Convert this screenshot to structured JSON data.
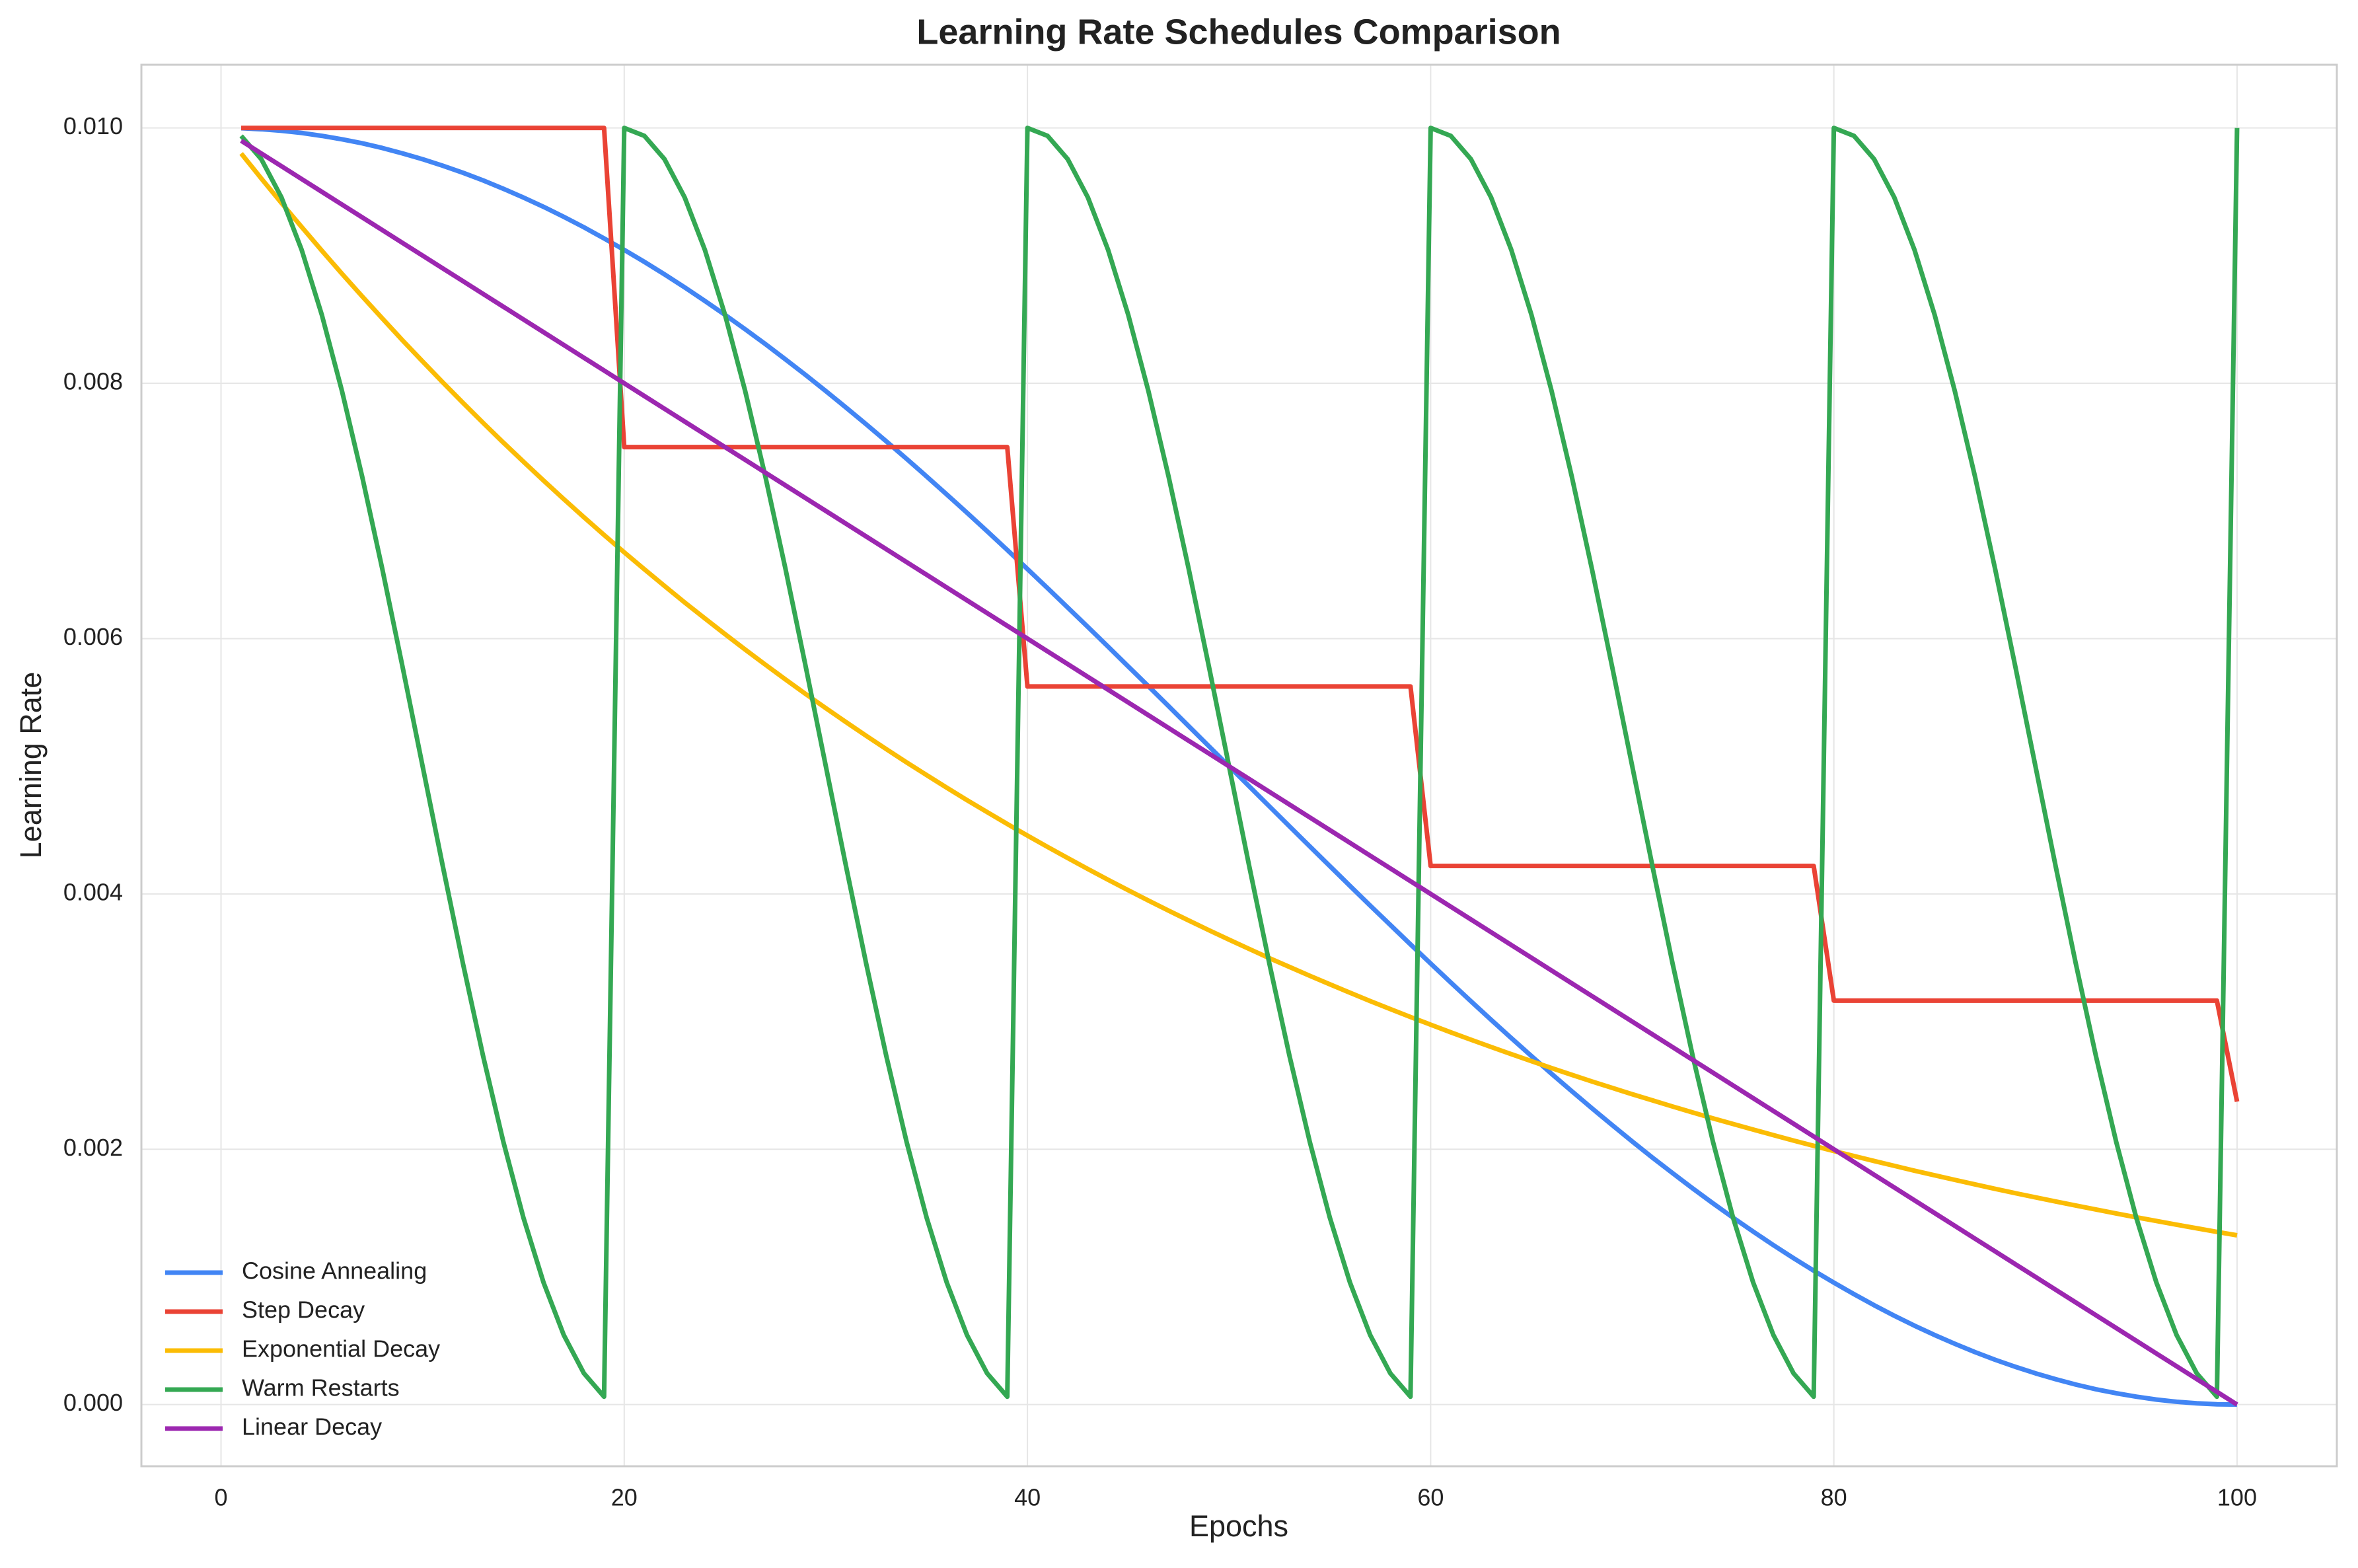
{
  "chart_data": {
    "type": "line",
    "title": "Learning Rate Schedules Comparison",
    "x_label": "Epochs",
    "y_label": "Learning Rate",
    "x": [
      1,
      2,
      3,
      4,
      5,
      6,
      7,
      8,
      9,
      10,
      11,
      12,
      13,
      14,
      15,
      16,
      17,
      18,
      19,
      20,
      21,
      22,
      23,
      24,
      25,
      26,
      27,
      28,
      29,
      30,
      31,
      32,
      33,
      34,
      35,
      36,
      37,
      38,
      39,
      40,
      41,
      42,
      43,
      44,
      45,
      46,
      47,
      48,
      49,
      50,
      51,
      52,
      53,
      54,
      55,
      56,
      57,
      58,
      59,
      60,
      61,
      62,
      63,
      64,
      65,
      66,
      67,
      68,
      69,
      70,
      71,
      72,
      73,
      74,
      75,
      76,
      77,
      78,
      79,
      80,
      81,
      82,
      83,
      84,
      85,
      86,
      87,
      88,
      89,
      90,
      91,
      92,
      93,
      94,
      95,
      96,
      97,
      98,
      99,
      100
    ],
    "series": [
      {
        "name": "Cosine Annealing",
        "color": "#4285F4",
        "values": [
          0.009998,
          0.00999,
          0.009978,
          0.009961,
          0.009938,
          0.009911,
          0.00988,
          0.009843,
          0.009801,
          0.009755,
          0.009704,
          0.009649,
          0.009589,
          0.009524,
          0.009455,
          0.009382,
          0.009304,
          0.009222,
          0.009135,
          0.009045,
          0.008951,
          0.008853,
          0.008751,
          0.008645,
          0.008536,
          0.008423,
          0.008307,
          0.008187,
          0.008065,
          0.007939,
          0.00781,
          0.007679,
          0.007545,
          0.007409,
          0.00727,
          0.007129,
          0.006986,
          0.006841,
          0.006694,
          0.006545,
          0.006395,
          0.006243,
          0.006091,
          0.005937,
          0.005782,
          0.005627,
          0.005471,
          0.005314,
          0.005157,
          0.005,
          0.004843,
          0.004686,
          0.004529,
          0.004373,
          0.004218,
          0.004063,
          0.003909,
          0.003757,
          0.003605,
          0.003455,
          0.003306,
          0.003159,
          0.003014,
          0.002871,
          0.00273,
          0.002591,
          0.002455,
          0.002321,
          0.00219,
          0.002061,
          0.001935,
          0.001813,
          0.001693,
          0.001577,
          0.001464,
          0.001355,
          0.001249,
          0.001147,
          0.001049,
          0.000955,
          0.000865,
          0.000778,
          0.000696,
          0.000618,
          0.000545,
          0.000476,
          0.000411,
          0.000351,
          0.000296,
          0.000245,
          0.000199,
          0.000157,
          0.00012,
          8.9e-05,
          6.2e-05,
          3.9e-05,
          2.2e-05,
          1e-05,
          2e-06,
          0
        ]
      },
      {
        "name": "Step Decay",
        "color": "#EA4335",
        "values": [
          0.01,
          0.01,
          0.01,
          0.01,
          0.01,
          0.01,
          0.01,
          0.01,
          0.01,
          0.01,
          0.01,
          0.01,
          0.01,
          0.01,
          0.01,
          0.01,
          0.01,
          0.01,
          0.01,
          0.0075,
          0.0075,
          0.0075,
          0.0075,
          0.0075,
          0.0075,
          0.0075,
          0.0075,
          0.0075,
          0.0075,
          0.0075,
          0.0075,
          0.0075,
          0.0075,
          0.0075,
          0.0075,
          0.0075,
          0.0075,
          0.0075,
          0.0075,
          0.005625,
          0.005625,
          0.005625,
          0.005625,
          0.005625,
          0.005625,
          0.005625,
          0.005625,
          0.005625,
          0.005625,
          0.005625,
          0.005625,
          0.005625,
          0.005625,
          0.005625,
          0.005625,
          0.005625,
          0.005625,
          0.005625,
          0.005625,
          0.004219,
          0.004219,
          0.004219,
          0.004219,
          0.004219,
          0.004219,
          0.004219,
          0.004219,
          0.004219,
          0.004219,
          0.004219,
          0.004219,
          0.004219,
          0.004219,
          0.004219,
          0.004219,
          0.004219,
          0.004219,
          0.004219,
          0.004219,
          0.003164,
          0.003164,
          0.003164,
          0.003164,
          0.003164,
          0.003164,
          0.003164,
          0.003164,
          0.003164,
          0.003164,
          0.003164,
          0.003164,
          0.003164,
          0.003164,
          0.003164,
          0.003164,
          0.003164,
          0.003164,
          0.003164,
          0.003164,
          0.002373
        ]
      },
      {
        "name": "Exponential Decay",
        "color": "#FBBC04",
        "values": [
          0.0098,
          0.009604,
          0.009412,
          0.009224,
          0.009039,
          0.008858,
          0.008681,
          0.008508,
          0.008337,
          0.008171,
          0.008007,
          0.007847,
          0.00769,
          0.007536,
          0.007386,
          0.007238,
          0.007093,
          0.006951,
          0.006812,
          0.006676,
          0.006543,
          0.006412,
          0.006283,
          0.006158,
          0.006035,
          0.005914,
          0.005796,
          0.00568,
          0.005566,
          0.005455,
          0.005346,
          0.005239,
          0.005134,
          0.005031,
          0.004931,
          0.004832,
          0.004735,
          0.004641,
          0.004548,
          0.004457,
          0.004368,
          0.004281,
          0.004195,
          0.004111,
          0.004029,
          0.003948,
          0.003869,
          0.003792,
          0.003716,
          0.003642,
          0.003569,
          0.003497,
          0.003428,
          0.003359,
          0.003292,
          0.003226,
          0.003161,
          0.003098,
          0.003036,
          0.002976,
          0.002916,
          0.002858,
          0.002801,
          0.002745,
          0.00269,
          0.002636,
          0.002583,
          0.002531,
          0.002481,
          0.002431,
          0.002383,
          0.002335,
          0.002288,
          0.002242,
          0.002198,
          0.002154,
          0.002111,
          0.002068,
          0.002027,
          0.001986,
          0.001947,
          0.001908,
          0.00187,
          0.001832,
          0.001796,
          0.00176,
          0.001725,
          0.00169,
          0.001656,
          0.001623,
          0.001591,
          0.001559,
          0.001528,
          0.001497,
          0.001467,
          0.001438,
          0.001409,
          0.001381,
          0.001353,
          0.001326
        ]
      },
      {
        "name": "Warm Restarts",
        "color": "#34A853",
        "values": [
          0.009938,
          0.009755,
          0.009455,
          0.009045,
          0.008536,
          0.007939,
          0.00727,
          0.006545,
          0.005782,
          0.005,
          0.004218,
          0.003455,
          0.00273,
          0.002061,
          0.001464,
          0.000955,
          0.000545,
          0.000245,
          6.2e-05,
          0.01,
          0.009938,
          0.009755,
          0.009455,
          0.009045,
          0.008536,
          0.007939,
          0.00727,
          0.006545,
          0.005782,
          0.005,
          0.004218,
          0.003455,
          0.00273,
          0.002061,
          0.001464,
          0.000955,
          0.000545,
          0.000245,
          6.2e-05,
          0.01,
          0.009938,
          0.009755,
          0.009455,
          0.009045,
          0.008536,
          0.007939,
          0.00727,
          0.006545,
          0.005782,
          0.005,
          0.004218,
          0.003455,
          0.00273,
          0.002061,
          0.001464,
          0.000955,
          0.000545,
          0.000245,
          6.2e-05,
          0.01,
          0.009938,
          0.009755,
          0.009455,
          0.009045,
          0.008536,
          0.007939,
          0.00727,
          0.006545,
          0.005782,
          0.005,
          0.004218,
          0.003455,
          0.00273,
          0.002061,
          0.001464,
          0.000955,
          0.000545,
          0.000245,
          6.2e-05,
          0.01,
          0.009938,
          0.009755,
          0.009455,
          0.009045,
          0.008536,
          0.007939,
          0.00727,
          0.006545,
          0.005782,
          0.005,
          0.004218,
          0.003455,
          0.00273,
          0.002061,
          0.001464,
          0.000955,
          0.000545,
          0.000245,
          6.2e-05,
          0.01
        ]
      },
      {
        "name": "Linear Decay",
        "color": "#9C27B0",
        "values": [
          0.0099,
          0.0098,
          0.0097,
          0.0096,
          0.0095,
          0.0094,
          0.0093,
          0.0092,
          0.0091,
          0.009,
          0.0089,
          0.0088,
          0.0087,
          0.0086,
          0.0085,
          0.0084,
          0.0083,
          0.0082,
          0.0081,
          0.008,
          0.0079,
          0.0078,
          0.0077,
          0.0076,
          0.0075,
          0.0074,
          0.0073,
          0.0072,
          0.0071,
          0.007,
          0.0069,
          0.0068,
          0.0067,
          0.0066,
          0.0065,
          0.0064,
          0.0063,
          0.0062,
          0.0061,
          0.006,
          0.0059,
          0.0058,
          0.0057,
          0.0056,
          0.0055,
          0.0054,
          0.0053,
          0.0052,
          0.0051,
          0.005,
          0.0049,
          0.0048,
          0.0047,
          0.0046,
          0.0045,
          0.0044,
          0.0043,
          0.0042,
          0.0041,
          0.004,
          0.0039,
          0.0038,
          0.0037,
          0.0036,
          0.0035,
          0.0034,
          0.0033,
          0.0032,
          0.0031,
          0.003,
          0.0029,
          0.0028,
          0.0027,
          0.0026,
          0.0025,
          0.0024,
          0.0023,
          0.0022,
          0.0021,
          0.002,
          0.0019,
          0.0018,
          0.0017,
          0.0016,
          0.0015,
          0.0014,
          0.0013,
          0.0012,
          0.0011,
          0.001,
          0.0009,
          0.0008,
          0.0007,
          0.0006,
          0.0005,
          0.0004,
          0.0003,
          0.0002,
          0.0001,
          0
        ]
      }
    ],
    "xlim": [
      -3.95,
      104.95
    ],
    "ylim": [
      -0.000483,
      0.010495
    ],
    "xticks": [
      0,
      20,
      40,
      60,
      80,
      100
    ],
    "yticks": [
      {
        "value": 0,
        "label": "0.000"
      },
      {
        "value": 0.002,
        "label": "0.002"
      },
      {
        "value": 0.004,
        "label": "0.004"
      },
      {
        "value": 0.006,
        "label": "0.006"
      },
      {
        "value": 0.008,
        "label": "0.008"
      },
      {
        "value": 0.01,
        "label": "0.010"
      }
    ],
    "grid": true,
    "legend": "lower left"
  }
}
